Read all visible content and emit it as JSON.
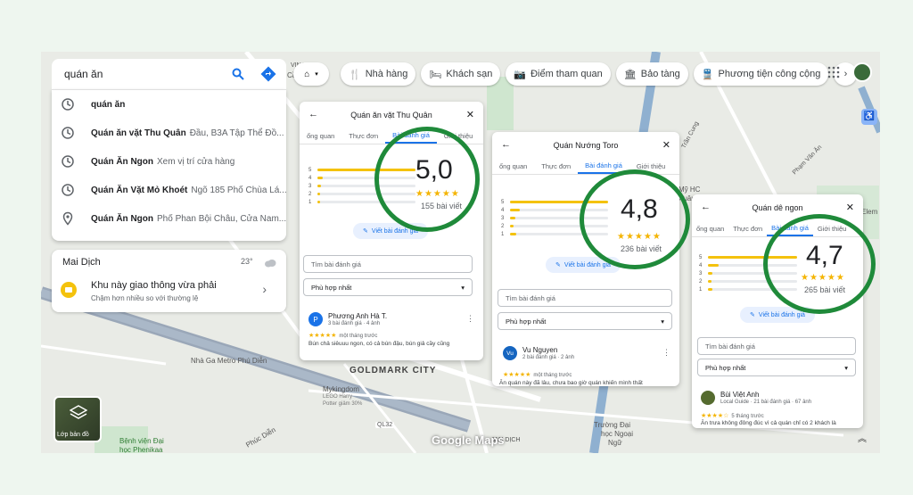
{
  "search": {
    "query": "quán ăn",
    "suggestions": [
      {
        "bold": "quán ăn",
        "rest": "",
        "icon": "clock-icon"
      },
      {
        "bold": "Quán ăn vặt Thu Quân",
        "rest": "Đầu, B3A Tập Thể Đồ...",
        "icon": "clock-icon"
      },
      {
        "bold": "Quán Ăn Ngon",
        "rest": "Xem vị trí cửa hàng",
        "icon": "clock-icon"
      },
      {
        "bold": "Quán Ăn Vặt Mỏ Khoét",
        "rest": "Ngõ 185 Phố Chùa Lá...",
        "icon": "clock-icon"
      },
      {
        "bold": "Quán Ăn Ngon",
        "rest": "Phố Phan Bội Châu, Cửa Nam...",
        "icon": "pin-icon"
      }
    ]
  },
  "weather": {
    "place": "Mai Dịch",
    "temp": "23°",
    "traffic_title": "Khu này giao thông vừa phải",
    "traffic_sub": "Chậm hơn nhiều so với thường lệ"
  },
  "chips": [
    "Nhà hàng",
    "Khách sạn",
    "Điểm tham quan",
    "Bảo tàng",
    "Phương tiện công cộng"
  ],
  "cards": [
    {
      "title": "Quán ăn vặt Thu Quân",
      "tabs": [
        "ổng quan",
        "Thực đơn",
        "Bài đánh giá",
        "Giới thiệu"
      ],
      "rating": "5,0",
      "count": "155 bài viết",
      "bars": [
        1.0,
        0.05,
        0.04,
        0.03,
        0.03
      ],
      "write": "Viết bài đánh giá",
      "search_placeholder": "Tìm bài đánh giá",
      "sort": "Phù hợp nhất",
      "review": {
        "initial": "P",
        "name": "Phương Anh Hà T.",
        "meta": "3 bài đánh giá · 4 ảnh",
        "time": "một tháng trước",
        "text": "Bún chả siêuuu ngon, có cả bún đậu, bún giả cầy cũng"
      }
    },
    {
      "title": "Quán Nướng Toro",
      "tabs": [
        "ổng quan",
        "Thực đơn",
        "Bài đánh giá",
        "Giới thiệu"
      ],
      "rating": "4,8",
      "count": "236 bài viết",
      "bars": [
        1.0,
        0.1,
        0.05,
        0.04,
        0.06
      ],
      "write": "Viết bài đánh giá",
      "search_placeholder": "Tìm bài đánh giá",
      "sort": "Phù hợp nhất",
      "review": {
        "initial": "Vu",
        "name": "Vu Nguyen",
        "meta": "2 bài đánh giá · 2 ảnh",
        "time": "một tháng trước",
        "text": "Ăn quán này đã lâu, chưa bao giờ quán khiến mình thất"
      }
    },
    {
      "title": "Quán dê ngon",
      "tabs": [
        "ổng quan",
        "Thực đơn",
        "Bài đánh giá",
        "Giới thiệu"
      ],
      "rating": "4,7",
      "count": "265 bài viết",
      "bars": [
        1.0,
        0.12,
        0.05,
        0.04,
        0.05
      ],
      "write": "Viết bài đánh giá",
      "search_placeholder": "Tìm bài đánh giá",
      "sort": "Phù hợp nhất",
      "review": {
        "initial": "",
        "name": "Bùi Việt Anh",
        "meta": "Local Guide · 21 bài đánh giá · 67 ảnh",
        "time": "5 tháng trước",
        "text": "Ăn trưa không đông đúc vì cả quán chỉ có 2 khách là"
      }
    }
  ],
  "map": {
    "labels": [
      "GOLDMARK CITY",
      "Nhà Ga Metro Phú Diễn",
      "Mykingdom",
      "LEGO Harry",
      "Potter giảm 30%",
      "Bệnh viện Đại",
      "học Phenikaa",
      "Phúc Diễn",
      "Trường Đại",
      "học Ngoại",
      "Ngữ",
      "Cầu Diễn",
      "Mỹ HC",
      "Xuân",
      "Trần Cung",
      "Phạm Văn Ăn",
      "QL32",
      "Elem",
      "MAI DỊCH",
      "VINAEIC"
    ],
    "brand": "Google Maps",
    "layer_label": "Lớp bản đồ"
  },
  "colors": {
    "accent": "#1a73e8",
    "circle": "#1f8a3a",
    "star": "#f4b400"
  }
}
